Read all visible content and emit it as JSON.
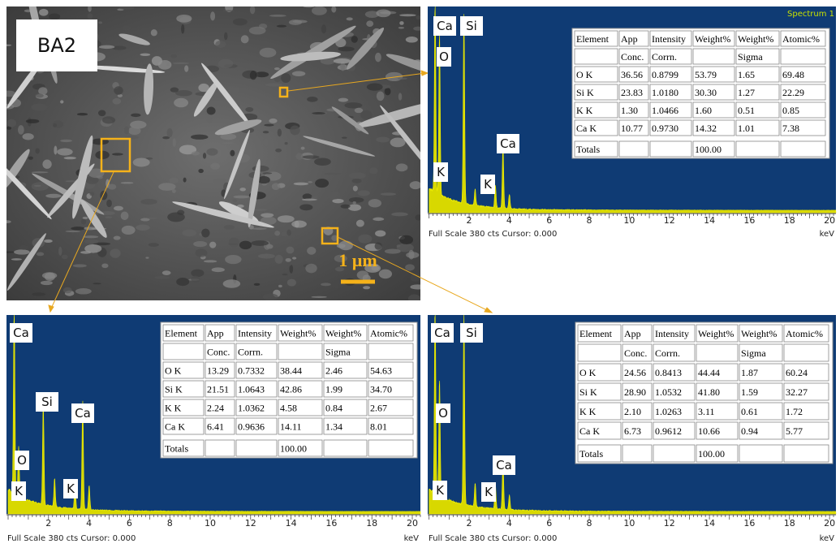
{
  "sem_image": {
    "label": "BA2",
    "scale_bar": "1 µm"
  },
  "spectra": [
    {
      "title": "Spectrum 1",
      "peak_labels": [
        "Ca",
        "Si",
        "O",
        "Ca",
        "K",
        "K"
      ],
      "table": {
        "header": [
          "Element",
          "App",
          "Intensity",
          "Weight%",
          "Weight%",
          "Atomic%"
        ],
        "subheader": [
          null,
          "Conc.",
          "Corrn.",
          null,
          "Sigma",
          null
        ],
        "rows": [
          [
            "O K",
            "36.56",
            "0.8799",
            "53.79",
            "1.65",
            "69.48"
          ],
          [
            "Si K",
            "23.83",
            "1.0180",
            "30.30",
            "1.27",
            "22.29"
          ],
          [
            "K K",
            "1.30",
            "1.0466",
            "1.60",
            "0.51",
            "0.85"
          ],
          [
            "Ca K",
            "10.77",
            "0.9730",
            "14.32",
            "1.01",
            "7.38"
          ]
        ],
        "totals": [
          "Totals",
          null,
          null,
          "100.00",
          null,
          null
        ]
      },
      "axis_ticks": [
        "2",
        "4",
        "6",
        "8",
        "10",
        "12",
        "14",
        "16",
        "18",
        "20"
      ],
      "axis_unit": "keV",
      "footer": "Full Scale 380 cts Cursor: 0.000"
    },
    {
      "peak_labels": [
        "Ca",
        "Si",
        "Ca",
        "O",
        "K",
        "K"
      ],
      "table": {
        "header": [
          "Element",
          "App",
          "Intensity",
          "Weight%",
          "Weight%",
          "Atomic%"
        ],
        "subheader": [
          null,
          "Conc.",
          "Corrn.",
          null,
          "Sigma",
          null
        ],
        "rows": [
          [
            "O K",
            "13.29",
            "0.7332",
            "38.44",
            "2.46",
            "54.63"
          ],
          [
            "Si K",
            "21.51",
            "1.0643",
            "42.86",
            "1.99",
            "34.70"
          ],
          [
            "K K",
            "2.24",
            "1.0362",
            "4.58",
            "0.84",
            "2.67"
          ],
          [
            "Ca K",
            "6.41",
            "0.9636",
            "14.11",
            "1.34",
            "8.01"
          ]
        ],
        "totals": [
          "Totals",
          null,
          null,
          "100.00",
          null,
          null
        ]
      },
      "axis_ticks": [
        "2",
        "4",
        "6",
        "8",
        "10",
        "12",
        "14",
        "16",
        "18",
        "20"
      ],
      "axis_unit": "keV",
      "footer": "Full Scale 380 cts Cursor: 0.000"
    },
    {
      "peak_labels": [
        "Ca",
        "Si",
        "O",
        "Ca",
        "K",
        "K"
      ],
      "table": {
        "header": [
          "Element",
          "App",
          "Intensity",
          "Weight%",
          "Weight%",
          "Atomic%"
        ],
        "subheader": [
          null,
          "Conc.",
          "Corrn.",
          null,
          "Sigma",
          null
        ],
        "rows": [
          [
            "O K",
            "24.56",
            "0.8413",
            "44.44",
            "1.87",
            "60.24"
          ],
          [
            "Si K",
            "28.90",
            "1.0532",
            "41.80",
            "1.59",
            "32.27"
          ],
          [
            "K K",
            "2.10",
            "1.0263",
            "3.11",
            "0.61",
            "1.72"
          ],
          [
            "Ca K",
            "6.73",
            "0.9612",
            "10.66",
            "0.94",
            "5.77"
          ]
        ],
        "totals": [
          "Totals",
          null,
          null,
          "100.00",
          null,
          null
        ]
      },
      "axis_ticks": [
        "2",
        "4",
        "6",
        "8",
        "10",
        "12",
        "14",
        "16",
        "18",
        "20"
      ],
      "axis_unit": "keV",
      "footer": "Full Scale 380 cts Cursor: 0.000"
    }
  ]
}
